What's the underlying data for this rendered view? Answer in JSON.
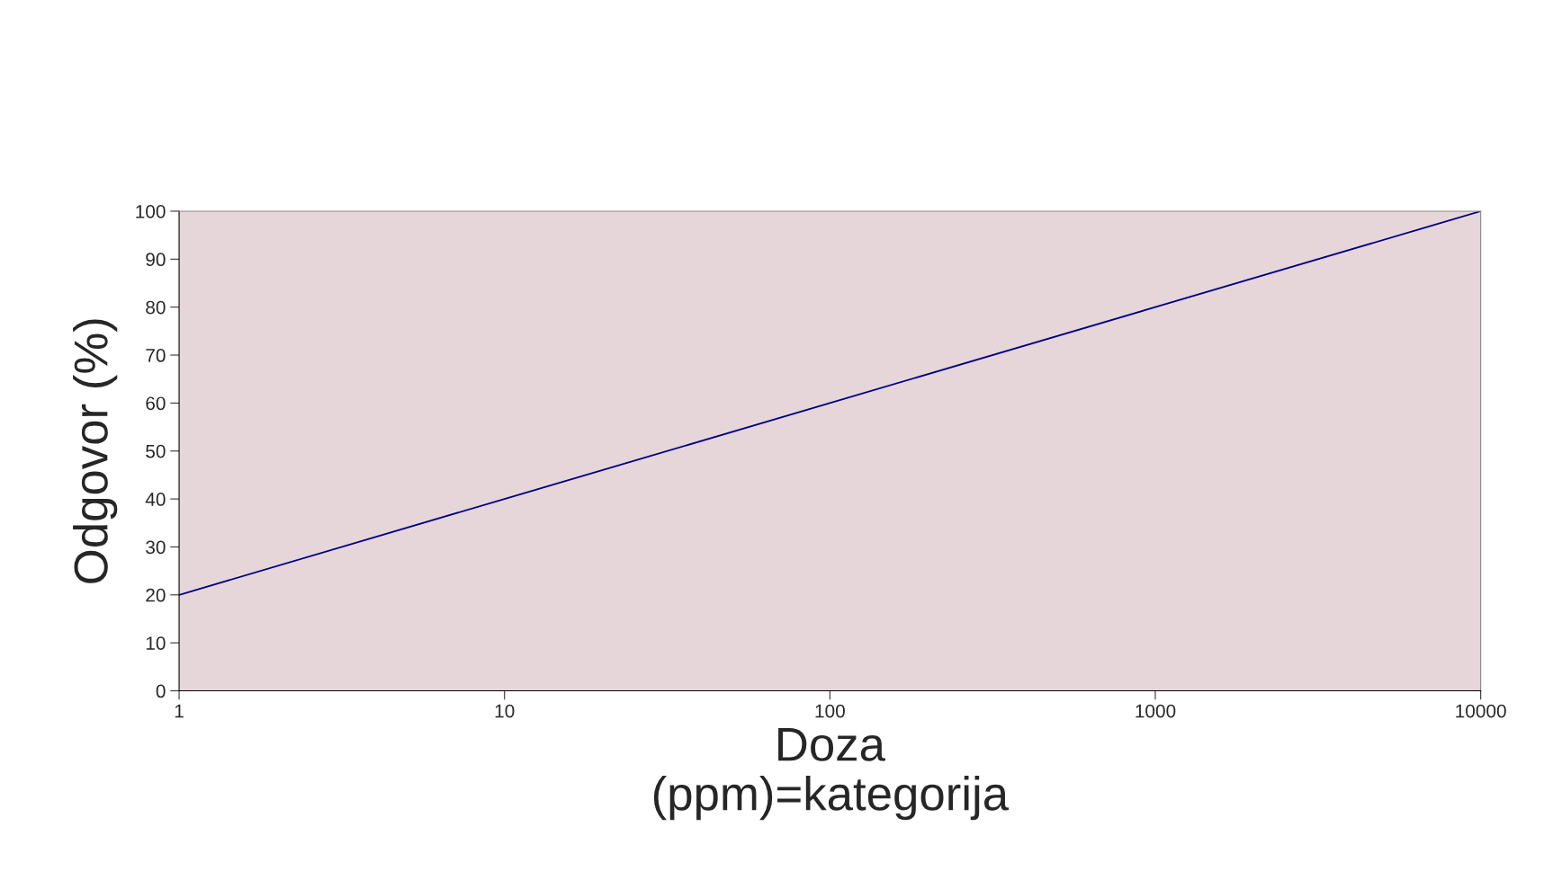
{
  "chart_data": {
    "type": "line",
    "xlabel": "Doza\n(ppm)=kategorija",
    "ylabel": "Odgovor (%)",
    "x": [
      1,
      10,
      100,
      1000,
      10000
    ],
    "series": [
      {
        "color": "#000080",
        "values": [
          20,
          40,
          60,
          80,
          100
        ]
      }
    ],
    "log": "x",
    "xlim": [
      1,
      10000
    ],
    "xticks": [
      1,
      10,
      100,
      1000,
      10000
    ],
    "ylim": [
      0,
      100
    ],
    "yticks": [
      0,
      10,
      20,
      30,
      40,
      50,
      60,
      70,
      80,
      90,
      100
    ],
    "grid": false,
    "marker": "none",
    "line_style": "solid"
  }
}
